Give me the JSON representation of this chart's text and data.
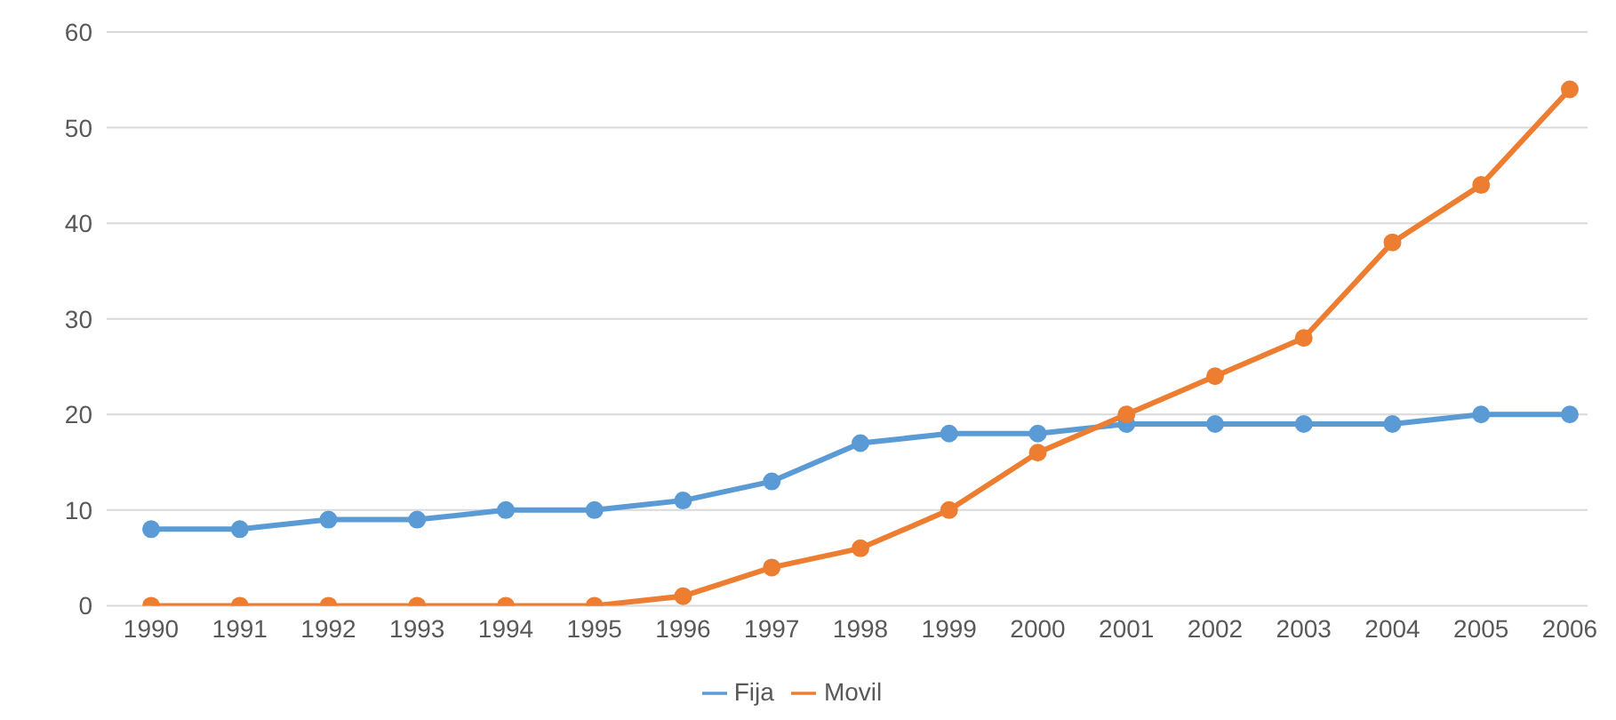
{
  "chart_data": {
    "type": "line",
    "categories": [
      "1990",
      "1991",
      "1992",
      "1993",
      "1994",
      "1995",
      "1996",
      "1997",
      "1998",
      "1999",
      "2000",
      "2001",
      "2002",
      "2003",
      "2004",
      "2005",
      "2006"
    ],
    "series": [
      {
        "name": "Fija",
        "color": "#5b9bd5",
        "values": [
          8,
          8,
          9,
          9,
          10,
          10,
          11,
          13,
          17,
          18,
          18,
          19,
          19,
          19,
          19,
          20,
          20
        ]
      },
      {
        "name": "Movil",
        "color": "#ed7d31",
        "values": [
          0,
          0,
          0,
          0,
          0,
          0,
          1,
          4,
          6,
          10,
          16,
          20,
          24,
          28,
          38,
          44,
          54
        ]
      }
    ],
    "ylim": [
      0,
      60
    ],
    "yticks": [
      0,
      10,
      20,
      30,
      40,
      50,
      60
    ],
    "grid": "y",
    "legend": "bottom",
    "marker": "circle"
  }
}
